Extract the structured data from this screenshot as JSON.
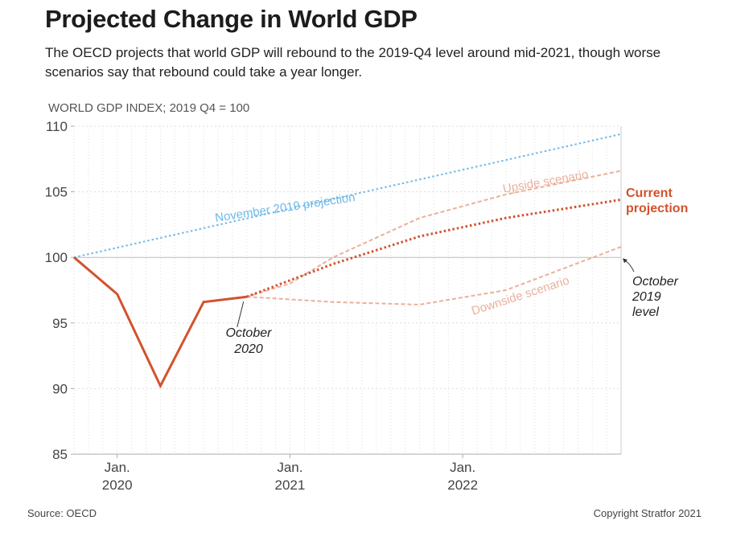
{
  "title": "Projected Change in World GDP",
  "subtitle": "The OECD projects that world GDP will rebound to the 2019-Q4 level around mid-2021, though worse scenarios say that rebound could take a year longer.",
  "source": "Source: OECD",
  "copyright": "Copyright Stratfor 2021",
  "colors": {
    "current": "#d2522e",
    "current_light": "#eab09c",
    "november": "#6fb9e6",
    "axis": "#aaaaaa",
    "grid": "#dddddd",
    "text": "#333333"
  },
  "chart_data": {
    "type": "line",
    "ylabel": "WORLD GDP INDEX; 2019 Q4 = 100",
    "ylim": [
      85,
      110
    ],
    "yticks": [
      85,
      90,
      95,
      100,
      105,
      110
    ],
    "xlim": [
      "2019-10",
      "2022-12"
    ],
    "xticks": [
      {
        "x": "2020-01",
        "line1": "Jan.",
        "line2": "2020"
      },
      {
        "x": "2021-01",
        "line1": "Jan.",
        "line2": "2021"
      },
      {
        "x": "2022-01",
        "line1": "Jan.",
        "line2": "2022"
      }
    ],
    "reference_line": 100,
    "grid": "vertical dotted, monthly",
    "series": [
      {
        "name": "November 2019 projection",
        "style": "dotted",
        "color": "#6fb9e6",
        "points": [
          [
            "2019-10",
            100
          ],
          [
            "2022-12",
            109.4
          ]
        ]
      },
      {
        "name": "",
        "style": "solid",
        "color": "#d2522e",
        "points": [
          [
            "2019-10",
            100
          ],
          [
            "2020-01",
            97.2
          ],
          [
            "2020-04",
            90.2
          ],
          [
            "2020-07",
            96.6
          ],
          [
            "2020-10",
            97.0
          ]
        ]
      },
      {
        "name": "Current projection",
        "style": "dotted",
        "color": "#d2522e",
        "points": [
          [
            "2020-10",
            97.0
          ],
          [
            "2021-04",
            99.5
          ],
          [
            "2021-10",
            101.6
          ],
          [
            "2022-04",
            103.0
          ],
          [
            "2022-12",
            104.4
          ]
        ]
      },
      {
        "name": "Upside scenario",
        "style": "dashed",
        "color": "#eab09c",
        "points": [
          [
            "2020-10",
            97.0
          ],
          [
            "2021-01",
            98.0
          ],
          [
            "2021-04",
            100.0
          ],
          [
            "2021-10",
            103.0
          ],
          [
            "2022-04",
            104.8
          ],
          [
            "2022-12",
            106.6
          ]
        ]
      },
      {
        "name": "Downside scenario",
        "style": "dashed",
        "color": "#eab09c",
        "points": [
          [
            "2020-10",
            97.0
          ],
          [
            "2021-04",
            96.6
          ],
          [
            "2021-10",
            96.4
          ],
          [
            "2022-04",
            97.5
          ],
          [
            "2022-12",
            100.8
          ]
        ]
      }
    ],
    "annotations": [
      {
        "text": [
          "October",
          "2020"
        ],
        "target": [
          "2020-10",
          97.0
        ]
      },
      {
        "text": [
          "October",
          "2019",
          "level"
        ],
        "target": [
          "2022-12",
          100.0
        ]
      }
    ]
  }
}
